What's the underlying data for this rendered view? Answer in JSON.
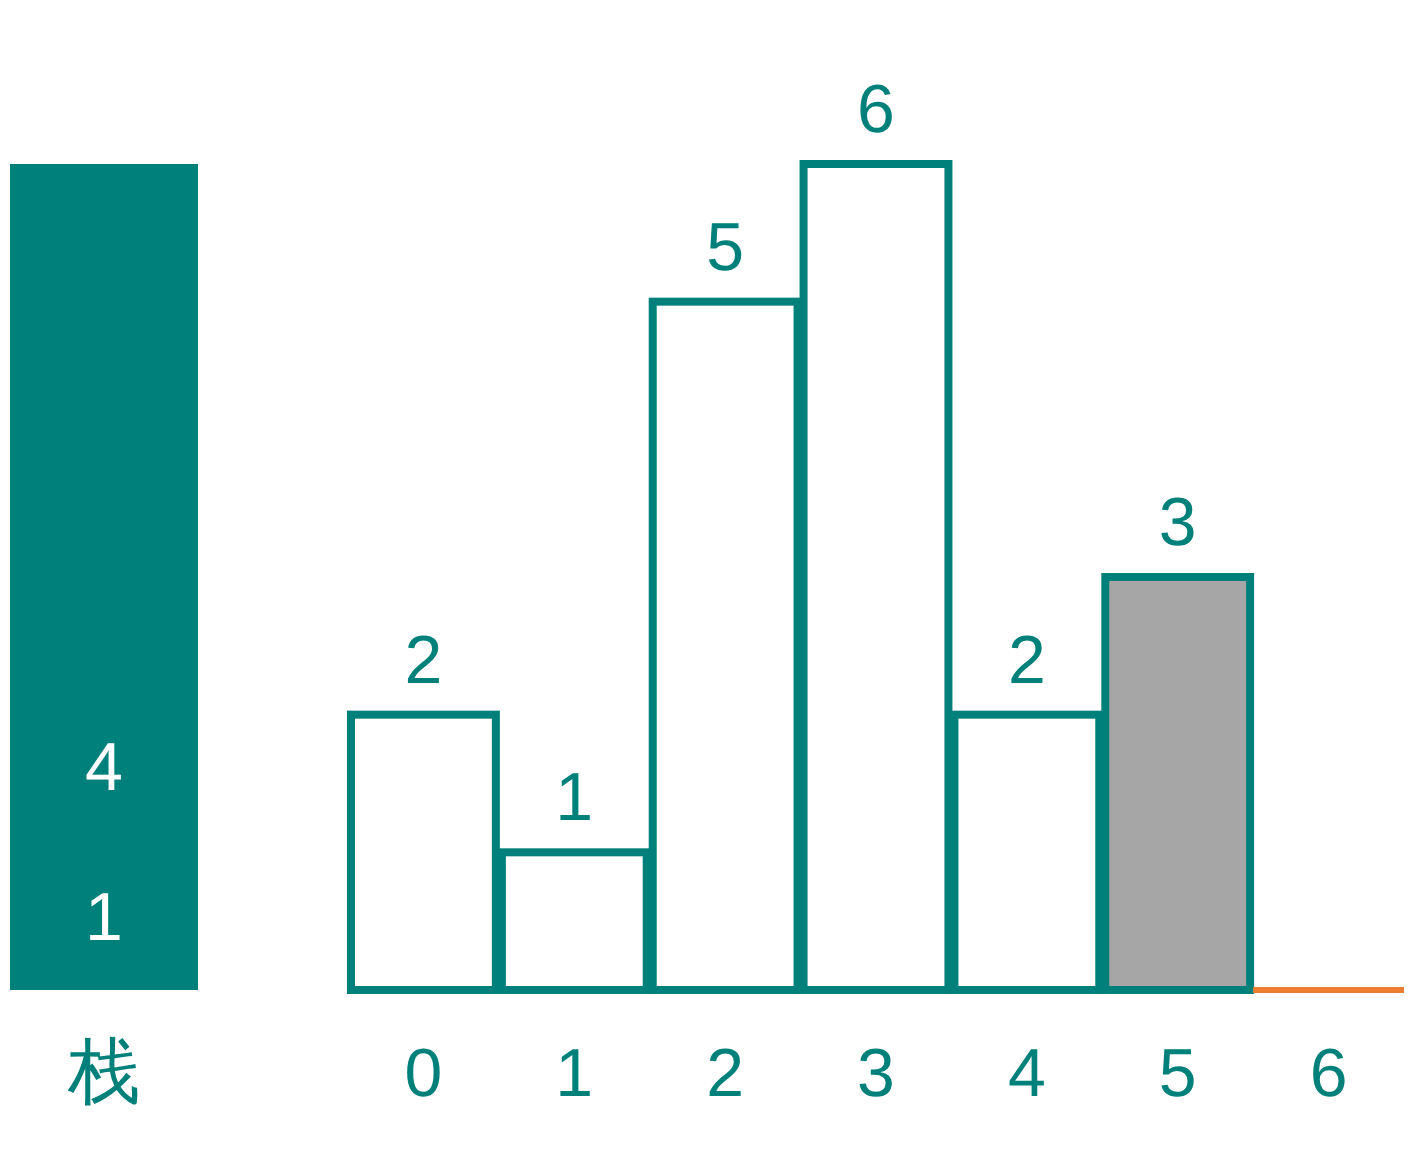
{
  "chart_data": [
    {
      "type": "other",
      "title": "栈",
      "annotations": [
        "4",
        "1"
      ]
    },
    {
      "type": "bar",
      "categories": [
        "0",
        "1",
        "2",
        "3",
        "4",
        "5",
        "6"
      ],
      "values": [
        2,
        1,
        5,
        6,
        2,
        3,
        0
      ],
      "colors": [
        "#ffffff",
        "#ffffff",
        "#ffffff",
        "#ffffff",
        "#ffffff",
        "#a6a6a6",
        "#ed7d31"
      ],
      "value_labels": [
        "2",
        "1",
        "5",
        "6",
        "2",
        "3",
        null
      ]
    }
  ]
}
